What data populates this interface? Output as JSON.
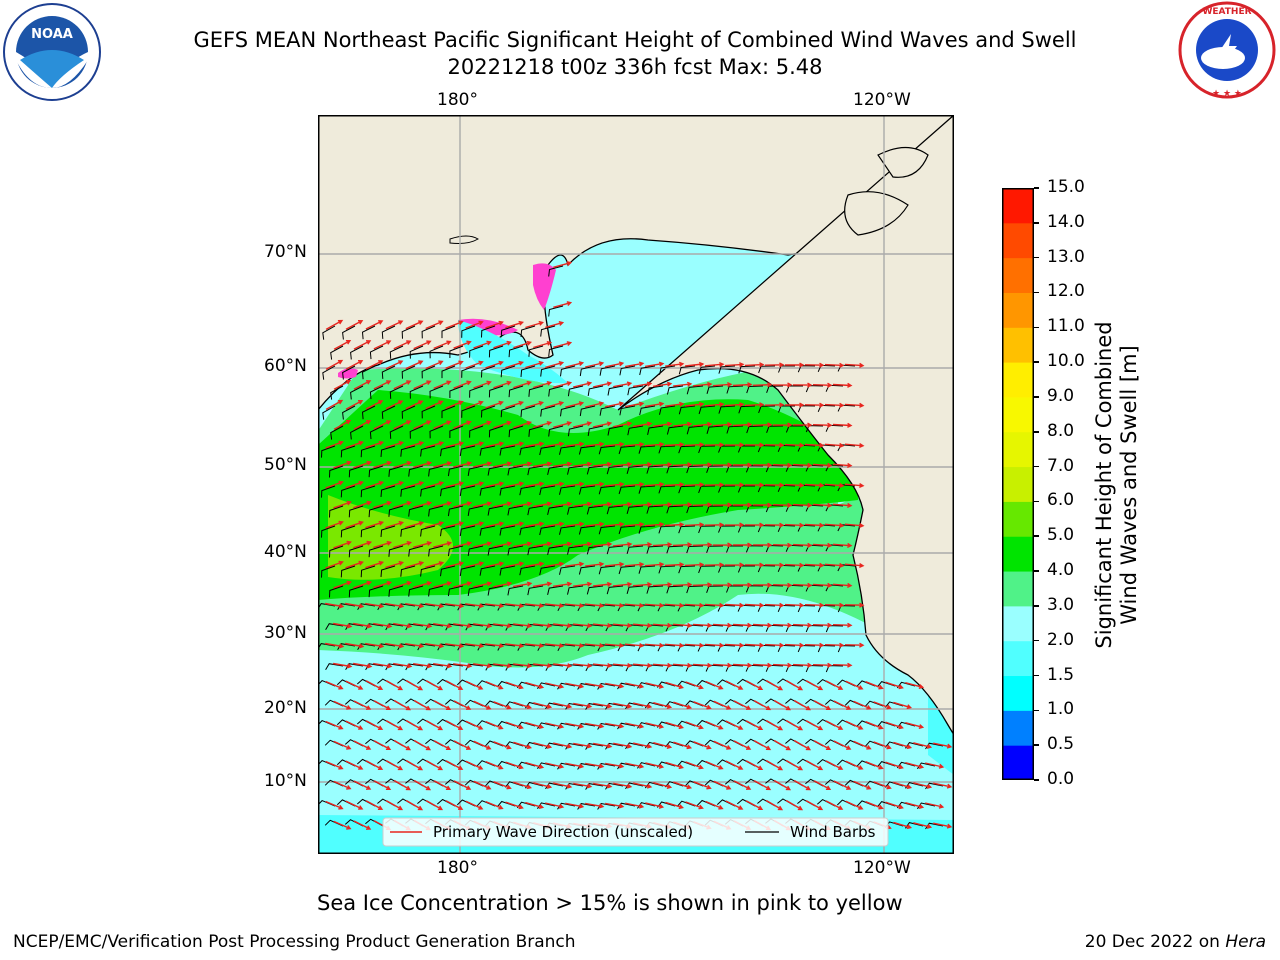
{
  "title": {
    "line1": "GEFS MEAN Northeast Pacific Significant Height of Combined Wind Waves and Swell",
    "line2": "20221218 t00z 336h fcst   Max: 5.48"
  },
  "logos": {
    "left": {
      "text": "NOAA",
      "ring_text": "NATIONAL OCEANIC AND ATMOSPHERIC ADMINISTRATION",
      "bottom_text": "U.S. DEPARTMENT OF COMMERCE"
    },
    "right": {
      "ring_text": "NATIONAL WEATHER SERVICE"
    }
  },
  "map": {
    "lon_labels_top": [
      "180°",
      "120°W"
    ],
    "lon_labels_bottom": [
      "180°",
      "120°W"
    ],
    "lat_labels": [
      "70°N",
      "60°N",
      "50°N",
      "40°N",
      "30°N",
      "20°N",
      "10°N"
    ],
    "lon_lines_deg": [
      180,
      240
    ],
    "lat_lines_deg": [
      70,
      60,
      50,
      40,
      30,
      20,
      10
    ],
    "land_color": "#efebdb",
    "ocean_colors": {
      "low": "#9affff",
      "mid": "#50f288",
      "high": "#00e400",
      "highest": "#7ae800"
    },
    "legend": {
      "wave": "Primary Wave Direction (unscaled)",
      "wind": "Wind Barbs"
    },
    "arrow_color": "#e8261f",
    "barb_color": "#000000"
  },
  "colorbar": {
    "label_line1": "Significant Height of Combined",
    "label_line2": "Wind Waves and Swell [m]",
    "ticks": [
      "0.0",
      "0.5",
      "1.0",
      "1.5",
      "2.0",
      "3.0",
      "4.0",
      "5.0",
      "6.0",
      "7.0",
      "8.0",
      "9.0",
      "10.0",
      "11.0",
      "12.0",
      "13.0",
      "14.0",
      "15.0"
    ],
    "bins": [
      {
        "from": 0.0,
        "to": 0.5,
        "color": "#0000ff"
      },
      {
        "from": 0.5,
        "to": 1.0,
        "color": "#0080ff"
      },
      {
        "from": 1.0,
        "to": 1.5,
        "color": "#00ffff"
      },
      {
        "from": 1.5,
        "to": 2.0,
        "color": "#50ffff"
      },
      {
        "from": 2.0,
        "to": 3.0,
        "color": "#9affff"
      },
      {
        "from": 3.0,
        "to": 4.0,
        "color": "#50f288"
      },
      {
        "from": 4.0,
        "to": 5.0,
        "color": "#00e400"
      },
      {
        "from": 5.0,
        "to": 6.0,
        "color": "#66e800"
      },
      {
        "from": 6.0,
        "to": 7.0,
        "color": "#c8f000"
      },
      {
        "from": 7.0,
        "to": 8.0,
        "color": "#e6f600"
      },
      {
        "from": 8.0,
        "to": 9.0,
        "color": "#f8f800"
      },
      {
        "from": 9.0,
        "to": 10.0,
        "color": "#ffee00"
      },
      {
        "from": 10.0,
        "to": 11.0,
        "color": "#ffc000"
      },
      {
        "from": 11.0,
        "to": 12.0,
        "color": "#ff9600"
      },
      {
        "from": 12.0,
        "to": 13.0,
        "color": "#ff7000"
      },
      {
        "from": 13.0,
        "to": 14.0,
        "color": "#ff4a00"
      },
      {
        "from": 14.0,
        "to": 15.0,
        "color": "#ff1800"
      }
    ]
  },
  "caption": "Sea Ice Concentration > 15% is shown in pink to yellow",
  "footer": {
    "left": "NCEP/EMC/Verification Post Processing Product Generation Branch",
    "right_prefix": "20 Dec 2022 on ",
    "right_machine": "Hera"
  }
}
